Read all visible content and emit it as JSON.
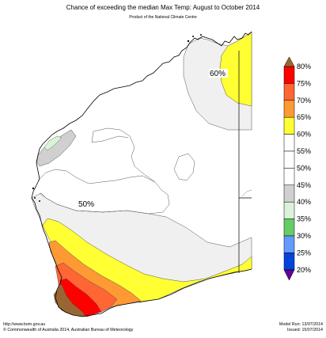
{
  "header": {
    "title": "Chance of exceeding the median Max Temp: August to October 2014",
    "subtitle": "Product of the National Climate Centre"
  },
  "map": {
    "labels": [
      {
        "text": "60%"
      },
      {
        "text": "50%"
      }
    ],
    "colors": {
      "ocean": "#ffffff",
      "land_50_55": "#ffffff",
      "land_55_60": "#f0f0f0",
      "c60_65": "#ffff33",
      "c65_70": "#ff9933",
      "c70_75": "#ff6633",
      "c75_80": "#ff0000",
      "c80_plus": "#996633",
      "c45_50": "#d0d0d0",
      "c40_45": "#d9f2d9"
    }
  },
  "legend": {
    "bands": [
      {
        "label": "80%",
        "color": "#996633"
      },
      {
        "label": "75%",
        "color": "#ff0000"
      },
      {
        "label": "70%",
        "color": "#ff6633"
      },
      {
        "label": "65%",
        "color": "#ff9933"
      },
      {
        "label": "60%",
        "color": "#ffff33"
      },
      {
        "label": "55%",
        "color": "#f0f0f0"
      },
      {
        "label": "50%",
        "color": "#ffffff"
      },
      {
        "label": "45%",
        "color": "#ffffff"
      },
      {
        "label": "40%",
        "color": "#d0d0d0"
      },
      {
        "label": "35%",
        "color": "#d9f2d9"
      },
      {
        "label": "30%",
        "color": "#66cc66"
      },
      {
        "label": "25%",
        "color": "#6699ff"
      },
      {
        "label": "20%",
        "color": "#0044dd"
      }
    ],
    "bottom_color": "#660099"
  },
  "footer": {
    "url": "http://www.bom.gov.au",
    "copyright": "©  Commonwealth of Australia 2014, Australian Bureau of Meteorology",
    "model_run": "Model Run: 13/07/2014",
    "issued": "Issued: 15/07/2014"
  }
}
